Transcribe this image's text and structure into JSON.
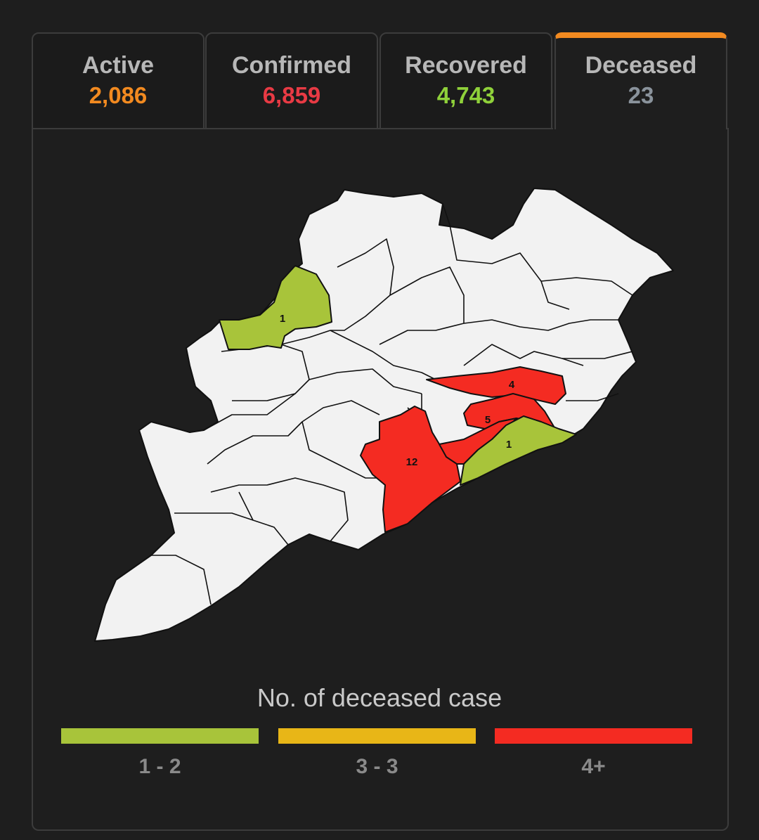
{
  "tabs": [
    {
      "label": "Active",
      "value": "2,086",
      "color": "#f28a20"
    },
    {
      "label": "Confirmed",
      "value": "6,859",
      "color": "#e83a44"
    },
    {
      "label": "Recovered",
      "value": "4,743",
      "color": "#8fd13a"
    },
    {
      "label": "Deceased",
      "value": "23",
      "color": "#8a939c"
    }
  ],
  "selected_tab": "Deceased",
  "map": {
    "district_labels": [
      "1",
      "4",
      "5",
      "1",
      "12"
    ],
    "colors": {
      "default_fill": "#f2f2f2",
      "border": "#111111",
      "low": "#a8c43a",
      "high": "#f42b22"
    }
  },
  "legend": {
    "title": "No. of deceased case",
    "items": [
      {
        "label": "1 - 2",
        "color": "#a8c43a"
      },
      {
        "label": "3 - 3",
        "color": "#e8b617"
      },
      {
        "label": "4+",
        "color": "#f42b22"
      }
    ]
  }
}
